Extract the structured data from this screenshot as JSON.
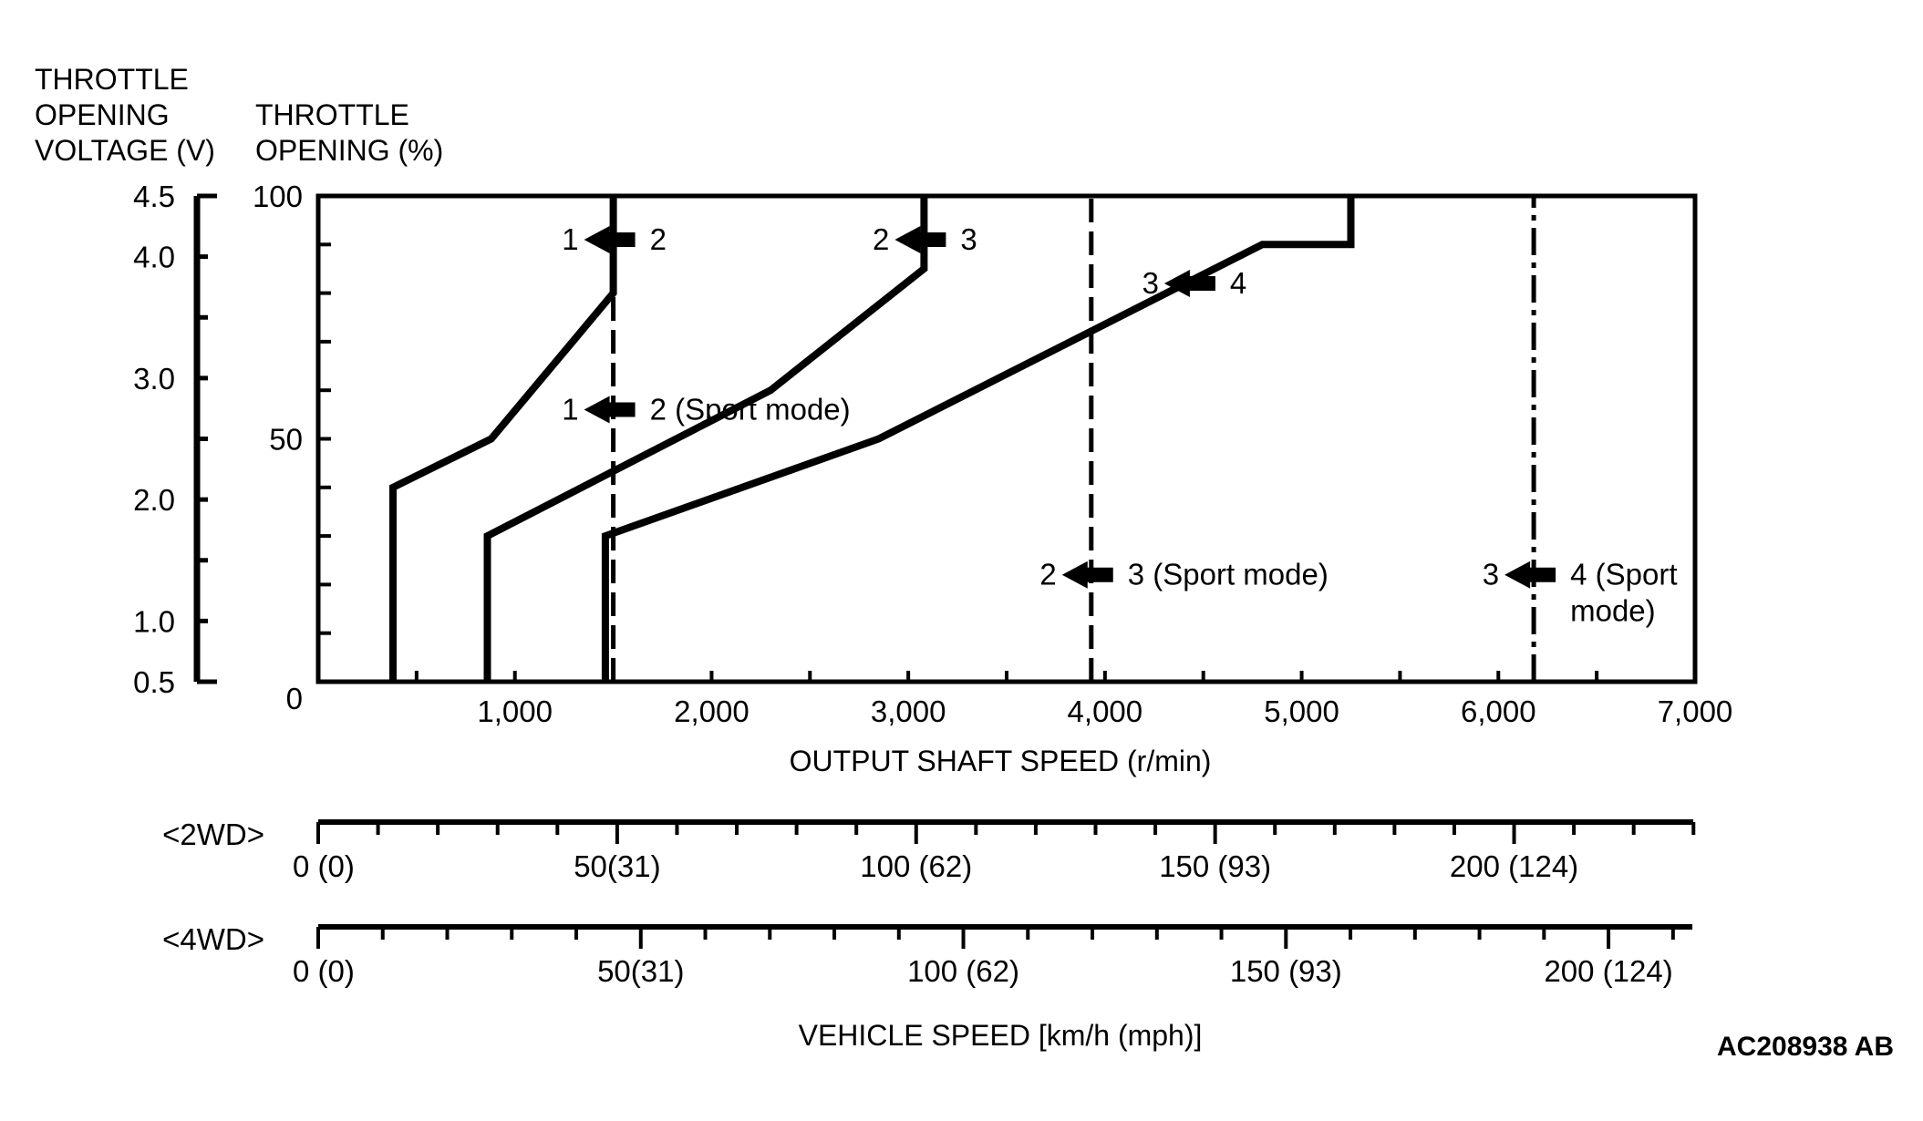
{
  "chart_data": {
    "type": "line",
    "title": "",
    "yaxis_voltage": {
      "label_lines": [
        "THROTTLE",
        "OPENING",
        "VOLTAGE (V)"
      ],
      "tick_labels": [
        "4.5",
        "4.0",
        "3.0",
        "2.0",
        "1.0",
        "0.5"
      ],
      "ticks": [
        4.5,
        4.0,
        3.0,
        2.0,
        1.0,
        0.5
      ],
      "range": [
        0.5,
        4.5
      ]
    },
    "yaxis_percent": {
      "label_lines": [
        "THROTTLE",
        "OPENING (%)"
      ],
      "tick_labels": [
        "100",
        "50",
        "0"
      ],
      "ticks": [
        100,
        50,
        0
      ],
      "range": [
        0,
        100
      ]
    },
    "xaxis": {
      "label": "OUTPUT SHAFT SPEED (r/min)",
      "tick_labels": [
        "1,000",
        "2,000",
        "3,000",
        "4,000",
        "5,000",
        "6,000",
        "7,000"
      ],
      "ticks": [
        1000,
        2000,
        3000,
        4000,
        5000,
        6000,
        7000
      ],
      "range": [
        0,
        7000
      ]
    },
    "series": [
      {
        "name": "1 to 2 (normal)",
        "style": "solid",
        "points": [
          [
            380,
            0
          ],
          [
            380,
            40
          ],
          [
            880,
            50
          ],
          [
            1500,
            80
          ],
          [
            1500,
            100
          ]
        ]
      },
      {
        "name": "2 to 3 (normal)",
        "style": "solid",
        "points": [
          [
            860,
            0
          ],
          [
            860,
            30
          ],
          [
            2300,
            60
          ],
          [
            3080,
            85
          ],
          [
            3080,
            100
          ]
        ]
      },
      {
        "name": "3 to 4 (normal)",
        "style": "solid",
        "points": [
          [
            1460,
            0
          ],
          [
            1460,
            30
          ],
          [
            2850,
            50
          ],
          [
            4800,
            90
          ],
          [
            5250,
            90
          ],
          [
            5250,
            100
          ]
        ]
      },
      {
        "name": "1 to 2 (Sport mode)",
        "style": "dashed",
        "points": [
          [
            1500,
            0
          ],
          [
            1500,
            100
          ]
        ]
      },
      {
        "name": "2 to 3 (Sport mode)",
        "style": "dashed",
        "points": [
          [
            3930,
            0
          ],
          [
            3930,
            100
          ]
        ]
      },
      {
        "name": "3 to 4 (Sport mode)",
        "style": "dashdot",
        "points": [
          [
            6180,
            0
          ],
          [
            6180,
            100
          ]
        ]
      }
    ],
    "annotations": [
      {
        "from": "1",
        "to": "2",
        "x": 1500,
        "y": 91
      },
      {
        "from": "2",
        "to": "3",
        "x": 3080,
        "y": 91
      },
      {
        "from": "3",
        "to": "4",
        "x": 4450,
        "y": 82
      },
      {
        "from": "1",
        "to": "2 (Sport mode)",
        "x": 1500,
        "y": 56
      },
      {
        "from": "2",
        "to": "3 (Sport mode)",
        "x": 3930,
        "y": 22
      },
      {
        "from": "3",
        "to": "4 (Sport",
        "to2": "mode)",
        "x": 6180,
        "y": 22
      }
    ],
    "vehicle_speed": {
      "label": "VEHICLE SPEED [km/h (mph)]",
      "scales": [
        {
          "name": "<2WD>",
          "tick_labels": [
            "0 (0)",
            "50(31)",
            "100 (62)",
            "150 (93)",
            "200 (124)"
          ],
          "values_kmh": [
            0,
            50,
            100,
            150,
            200
          ],
          "rpm_per_50kmh": 1520,
          "minor_kmh": 10,
          "max_kmh": 230
        },
        {
          "name": "<4WD>",
          "tick_labels": [
            "0 (0)",
            "50(31)",
            "100 (62)",
            "150 (93)",
            "200 (124)"
          ],
          "values_kmh": [
            0,
            50,
            100,
            150,
            200
          ],
          "rpm_per_50kmh": 1640,
          "minor_kmh": 10,
          "max_kmh": 213
        }
      ]
    }
  },
  "figure_code": "AC208938 AB"
}
